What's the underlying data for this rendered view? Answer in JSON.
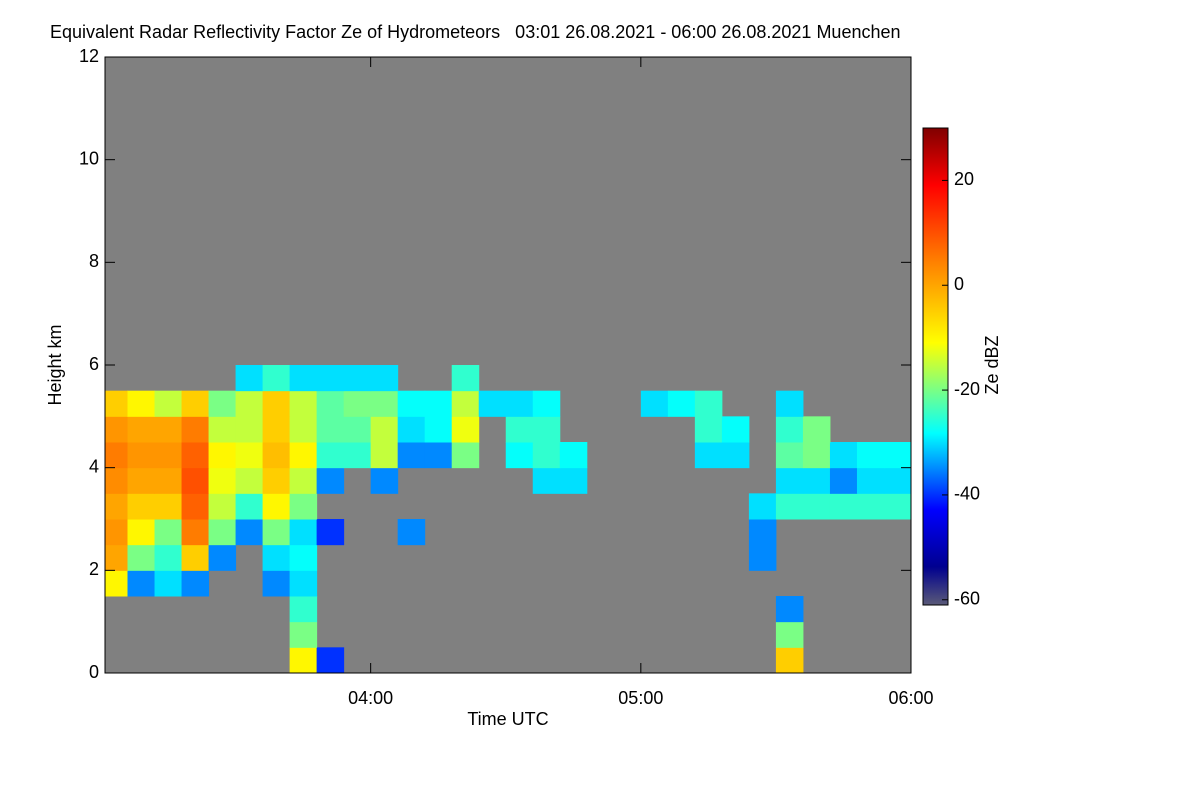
{
  "chart_data": {
    "type": "heatmap",
    "title": "Equivalent Radar Reflectivity Factor Ze of Hydrometeors   03:01 26.08.2021 - 06:00 26.08.2021 Muenchen",
    "x_label": "Time UTC",
    "y_label": "Height km",
    "colorbar_label": "Ze dBZ",
    "colormap": "jet",
    "background": "#808080",
    "x": [
      3.05,
      3.15,
      3.25,
      3.35,
      3.45,
      3.55,
      3.65,
      3.75,
      3.85,
      3.95,
      4.05,
      4.15,
      4.25,
      4.35,
      4.45,
      4.55,
      4.65,
      4.75,
      4.85,
      4.95,
      5.05,
      5.15,
      5.25,
      5.35,
      5.45,
      5.55,
      5.65,
      5.75,
      5.85,
      5.95
    ],
    "y": [
      0.25,
      0.75,
      1.25,
      1.75,
      2.25,
      2.75,
      3.25,
      3.75,
      4.25,
      4.75,
      5.25,
      5.75
    ],
    "z": [
      [
        null,
        null,
        null,
        null,
        null,
        null,
        null,
        -10,
        -40,
        null,
        null,
        null,
        null,
        null,
        null,
        null,
        null,
        null,
        null,
        null,
        null,
        null,
        null,
        null,
        null,
        -5,
        null,
        null,
        null,
        null
      ],
      [
        null,
        null,
        null,
        null,
        null,
        null,
        null,
        -20,
        null,
        null,
        null,
        null,
        null,
        null,
        null,
        null,
        null,
        null,
        null,
        null,
        null,
        null,
        null,
        null,
        null,
        -20,
        null,
        null,
        null,
        null
      ],
      [
        null,
        null,
        null,
        null,
        null,
        null,
        null,
        -25,
        null,
        null,
        null,
        null,
        null,
        null,
        null,
        null,
        null,
        null,
        null,
        null,
        null,
        null,
        null,
        null,
        null,
        -35,
        null,
        null,
        null,
        null
      ],
      [
        -10,
        -35,
        -30,
        -35,
        null,
        null,
        -35,
        -30,
        null,
        null,
        null,
        null,
        null,
        null,
        null,
        null,
        null,
        null,
        null,
        null,
        null,
        null,
        null,
        null,
        null,
        null,
        null,
        null,
        null,
        null
      ],
      [
        0,
        -20,
        -25,
        -5,
        -35,
        null,
        -30,
        -28,
        null,
        null,
        null,
        null,
        null,
        null,
        null,
        null,
        null,
        null,
        null,
        null,
        null,
        null,
        null,
        null,
        -35,
        null,
        null,
        null,
        null,
        null
      ],
      [
        2,
        -10,
        -20,
        5,
        -20,
        -35,
        -20,
        -30,
        -40,
        null,
        null,
        -35,
        null,
        null,
        null,
        null,
        null,
        null,
        null,
        null,
        null,
        null,
        null,
        null,
        -35,
        null,
        null,
        null,
        null,
        null
      ],
      [
        0,
        -5,
        -5,
        8,
        -15,
        -25,
        -10,
        -20,
        null,
        null,
        null,
        null,
        null,
        null,
        null,
        null,
        null,
        null,
        null,
        null,
        null,
        null,
        null,
        null,
        -30,
        -25,
        -25,
        -25,
        -25,
        -25
      ],
      [
        3,
        0,
        0,
        10,
        -12,
        -15,
        -5,
        -15,
        -35,
        null,
        -35,
        null,
        null,
        null,
        null,
        null,
        -30,
        -30,
        null,
        null,
        null,
        null,
        null,
        null,
        null,
        -30,
        -30,
        -35,
        -30,
        -30
      ],
      [
        5,
        2,
        2,
        8,
        -10,
        -12,
        -3,
        -10,
        -25,
        -25,
        -15,
        -35,
        -35,
        -20,
        null,
        -28,
        -25,
        -28,
        null,
        null,
        null,
        null,
        -30,
        -30,
        null,
        -22,
        -20,
        -30,
        -28,
        -28
      ],
      [
        2,
        0,
        0,
        5,
        -15,
        -15,
        -5,
        -15,
        -22,
        -22,
        -15,
        -30,
        -28,
        -12,
        null,
        -25,
        -25,
        null,
        null,
        null,
        null,
        null,
        -25,
        -28,
        null,
        -25,
        -20,
        null,
        null,
        null
      ],
      [
        -5,
        -10,
        -15,
        -5,
        -20,
        -15,
        -5,
        -15,
        -22,
        -20,
        -20,
        -28,
        -28,
        -15,
        -30,
        -30,
        -28,
        null,
        null,
        null,
        -30,
        -28,
        -25,
        null,
        null,
        -30,
        null,
        null,
        null,
        null
      ],
      [
        null,
        null,
        null,
        null,
        null,
        -30,
        -25,
        -30,
        -30,
        -30,
        -30,
        null,
        null,
        -25,
        null,
        null,
        null,
        null,
        null,
        null,
        null,
        null,
        null,
        null,
        null,
        null,
        null,
        null,
        null,
        null
      ]
    ],
    "xlim": [
      3.0167,
      6.0
    ],
    "xticks": [
      {
        "value": 4,
        "label": "04:00"
      },
      {
        "value": 5,
        "label": "05:00"
      },
      {
        "value": 6,
        "label": "06:00"
      }
    ],
    "ylim": [
      0,
      12
    ],
    "yticks": [
      0,
      2,
      4,
      6,
      8,
      10,
      12
    ],
    "clim": [
      -61,
      30
    ],
    "cticks": [
      -60,
      -40,
      -20,
      0,
      20
    ]
  }
}
